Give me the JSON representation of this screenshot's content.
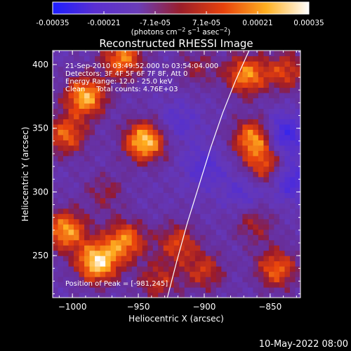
{
  "chart_data": {
    "type": "heatmap",
    "title": "Reconstructed RHESSI Image",
    "xlabel": "Heliocentric X (arcsec)",
    "ylabel": "Heliocentric Y (arcsec)",
    "xlim": [
      -1015,
      -827
    ],
    "ylim": [
      217,
      411
    ],
    "xticks": [
      -1000,
      -950,
      -900,
      -850
    ],
    "yticks": [
      250,
      300,
      350,
      400
    ],
    "colorbar": {
      "ticks": [
        "-0.00035",
        "-0.00021",
        "-7.1e-05",
        "7.1e-05",
        "0.00021",
        "0.00035"
      ],
      "range": [
        -0.00035,
        0.00035
      ],
      "unit_label": "(photons cm^-2 s^-1 asec^-2)",
      "colors": [
        "#1e1eff",
        "#5a2fd0",
        "#6a3db8",
        "#9b1e2a",
        "#e8420c",
        "#ffb020",
        "#ffffff"
      ]
    },
    "annotations": [
      "21-Sep-2010 03:49:52.000 to 03:54:04.000",
      "Detectors: 3F 4F 5F 6F 7F 8F, Att 0",
      "Energy Range: 12.0 - 25.0 keV",
      "Clean     Total counts: 4.76E+03",
      "Position of Peak = [-981,245]"
    ],
    "limb_curve": {
      "x": [
        -928,
        -921,
        -913,
        -904,
        -895,
        -886,
        -876,
        -866
      ],
      "y": [
        217,
        245,
        275,
        305,
        335,
        362,
        388,
        411
      ]
    },
    "grid": false,
    "hotspots": [
      {
        "x": -990,
        "y": 375,
        "v": 0.0003
      },
      {
        "x": -1005,
        "y": 345,
        "v": 0.00022
      },
      {
        "x": -945,
        "y": 340,
        "v": 0.00033
      },
      {
        "x": -962,
        "y": 405,
        "v": 0.00025
      },
      {
        "x": -868,
        "y": 392,
        "v": 0.00026
      },
      {
        "x": -862,
        "y": 342,
        "v": 0.00028
      },
      {
        "x": -853,
        "y": 320,
        "v": 0.0002
      },
      {
        "x": -838,
        "y": 395,
        "v": 0.00018
      },
      {
        "x": -981,
        "y": 245,
        "v": 0.00035
      },
      {
        "x": -1005,
        "y": 270,
        "v": 0.00028
      },
      {
        "x": -960,
        "y": 262,
        "v": 0.00025
      },
      {
        "x": -920,
        "y": 260,
        "v": 0.00018
      },
      {
        "x": -935,
        "y": 230,
        "v": 0.00015
      },
      {
        "x": -900,
        "y": 238,
        "v": 0.00016
      },
      {
        "x": -845,
        "y": 240,
        "v": 0.00022
      },
      {
        "x": -862,
        "y": 275,
        "v": 0.00012
      },
      {
        "x": -975,
        "y": 300,
        "v": 0.0001
      },
      {
        "x": -905,
        "y": 398,
        "v": 0.0001
      }
    ],
    "coldspots": [
      {
        "x": -900,
        "y": 320,
        "v": -0.00012
      },
      {
        "x": -920,
        "y": 355,
        "v": -0.0001
      },
      {
        "x": -840,
        "y": 345,
        "v": -0.00022
      },
      {
        "x": -835,
        "y": 310,
        "v": -0.00018
      },
      {
        "x": -870,
        "y": 300,
        "v": -0.0001
      }
    ]
  },
  "footer": {
    "timestamp": "10-May-2022 08:00"
  }
}
